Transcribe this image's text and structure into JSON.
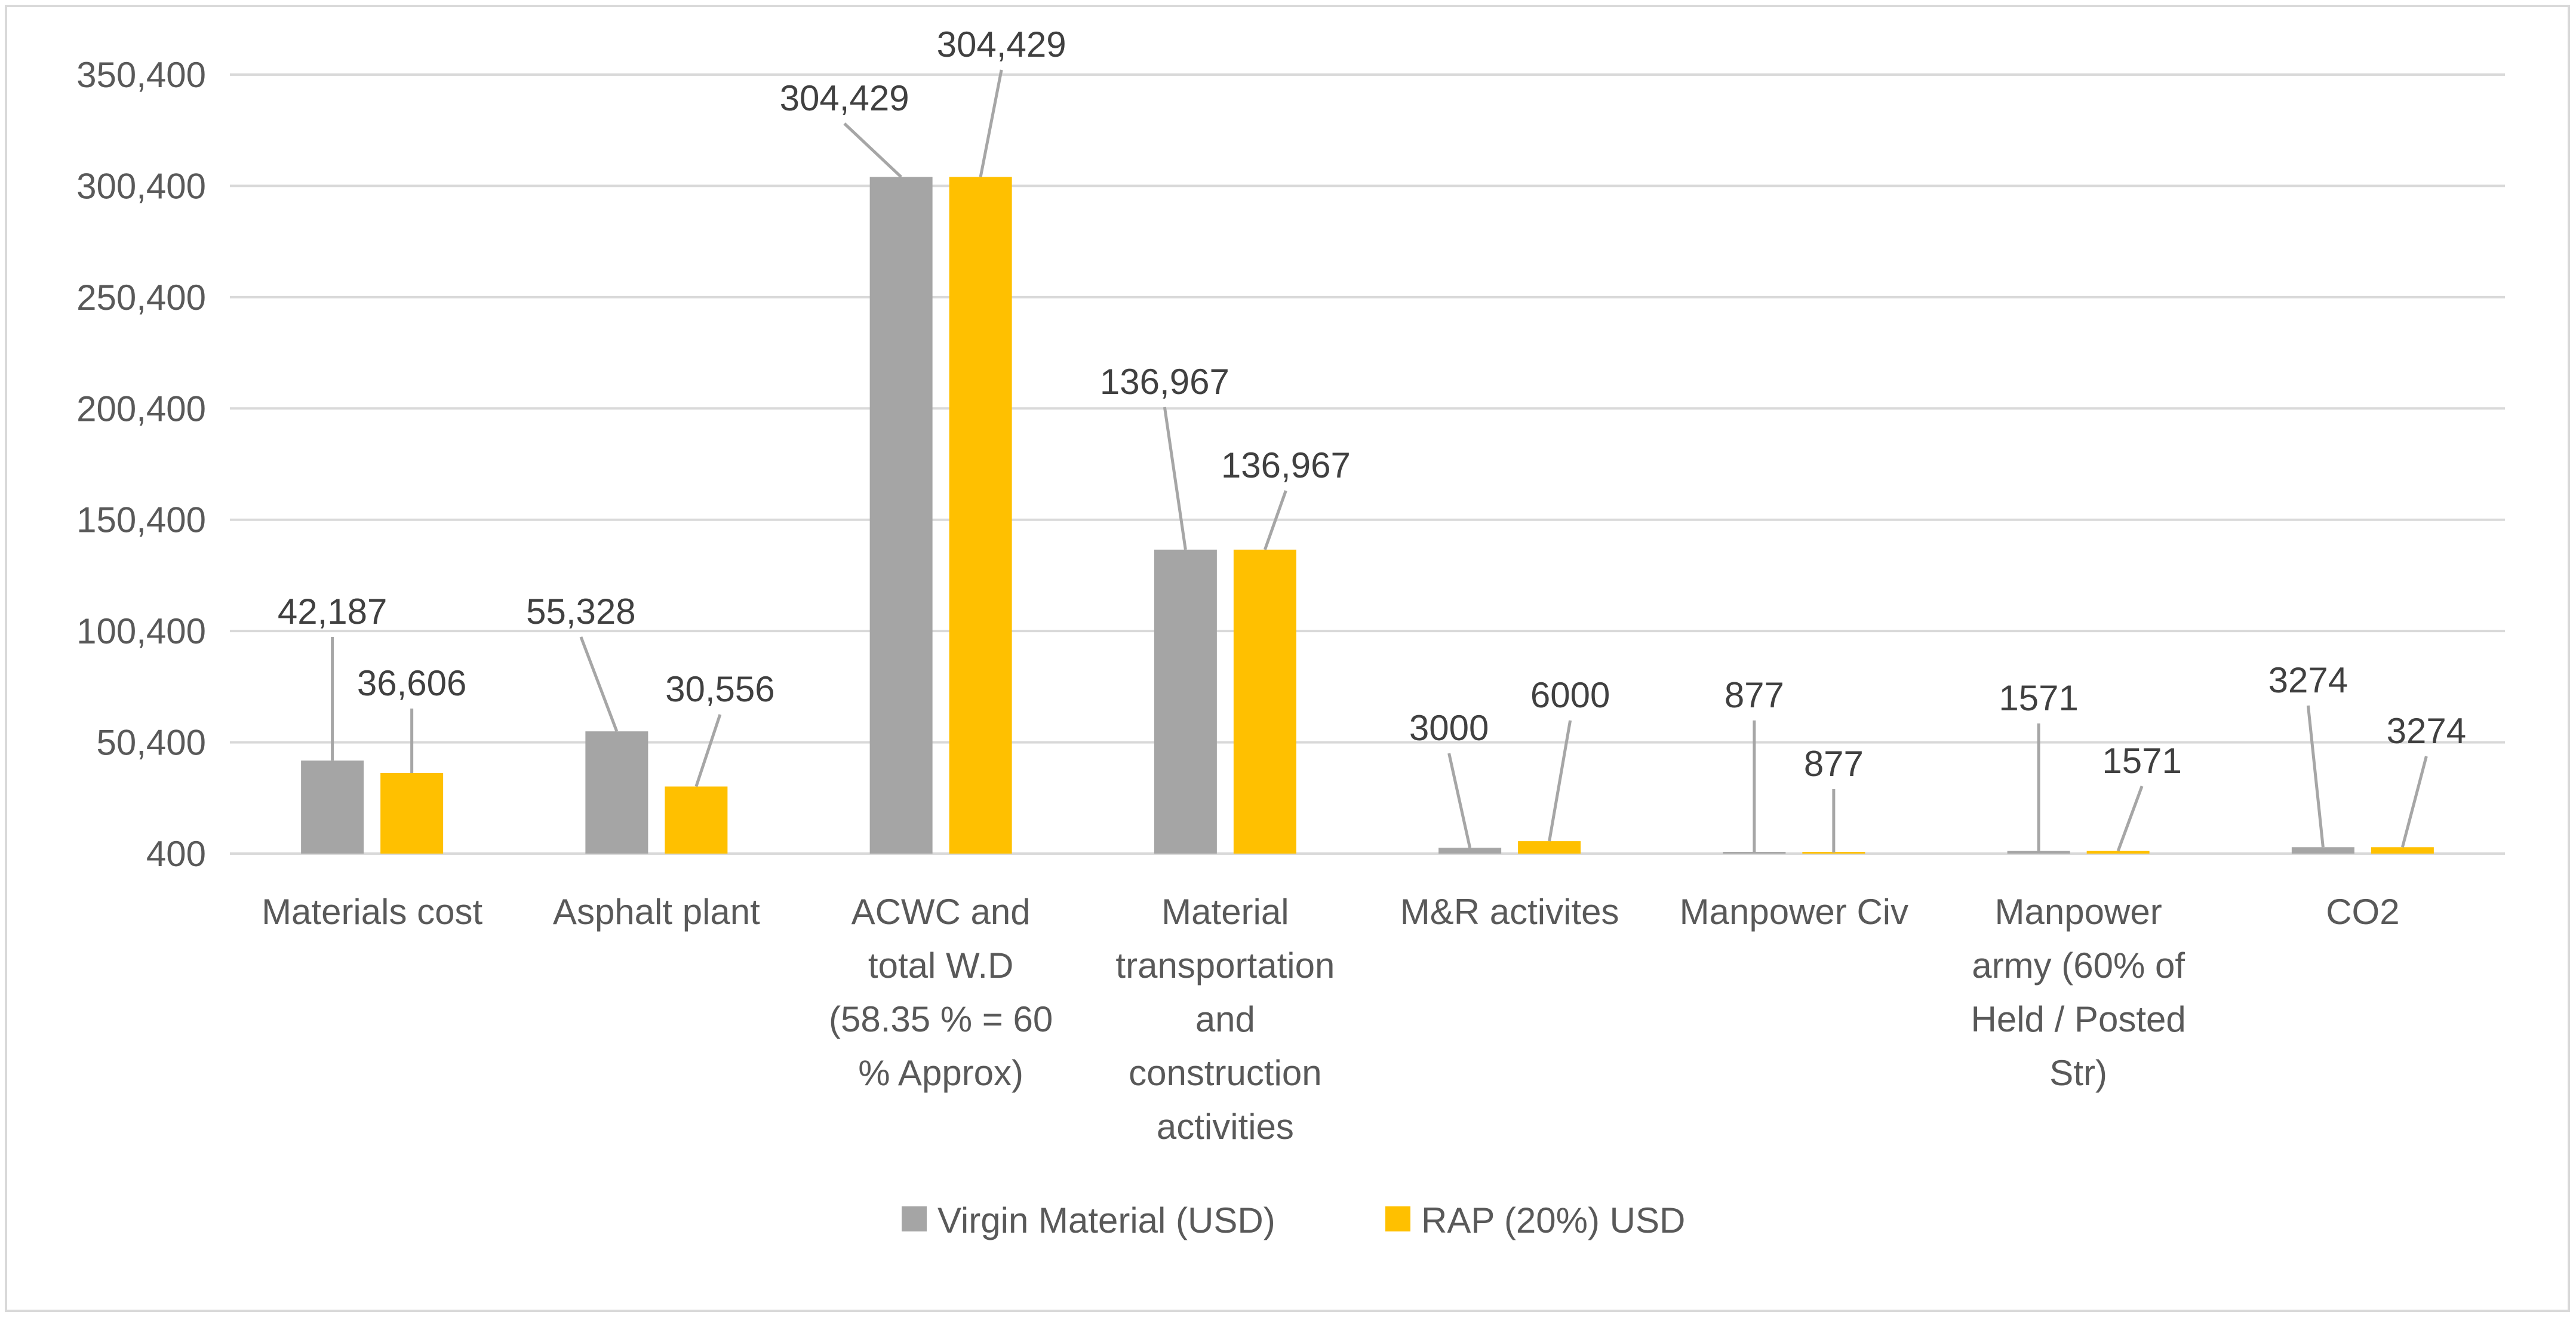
{
  "chart_data": {
    "type": "bar",
    "title": "",
    "xlabel": "",
    "ylabel": "",
    "ylim": [
      400,
      350400
    ],
    "y_ticks": [
      400,
      50400,
      100400,
      150400,
      200400,
      250400,
      300400,
      350400
    ],
    "y_tick_labels": [
      "400",
      "50,400",
      "100,400",
      "150,400",
      "200,400",
      "250,400",
      "300,400",
      "350,400"
    ],
    "grid": true,
    "legend_position": "bottom",
    "categories": [
      [
        "Materials cost"
      ],
      [
        "Asphalt plant"
      ],
      [
        "ACWC and",
        "total W.D",
        "(58.35 % = 60",
        "% Approx)"
      ],
      [
        "Material",
        "transportation",
        "and",
        "construction",
        "activities"
      ],
      [
        "M&R activites"
      ],
      [
        "Manpower Civ"
      ],
      [
        "Manpower",
        "army (60% of",
        "Held / Posted",
        "Str)"
      ],
      [
        "CO2"
      ]
    ],
    "series": [
      {
        "name": "Virgin Material (USD)",
        "color": "#a5a5a5",
        "values": [
          42187,
          55328,
          304429,
          136967,
          3000,
          877,
          1571,
          3274
        ],
        "labels": [
          "42,187",
          "55,328",
          "304,429",
          "136,967",
          "3000",
          "877",
          "1571",
          "3274"
        ]
      },
      {
        "name": "RAP (20%) USD",
        "color": "#ffc000",
        "values": [
          36606,
          30556,
          304429,
          136967,
          6000,
          877,
          1571,
          3274
        ],
        "labels": [
          "36,606",
          "30,556",
          "304,429",
          "136,967",
          "6000",
          "877",
          "1571",
          "3274"
        ]
      }
    ],
    "colors": {
      "grid": "#d9d9d9",
      "leader": "#a6a6a6",
      "axis": "#d9d9d9"
    }
  }
}
